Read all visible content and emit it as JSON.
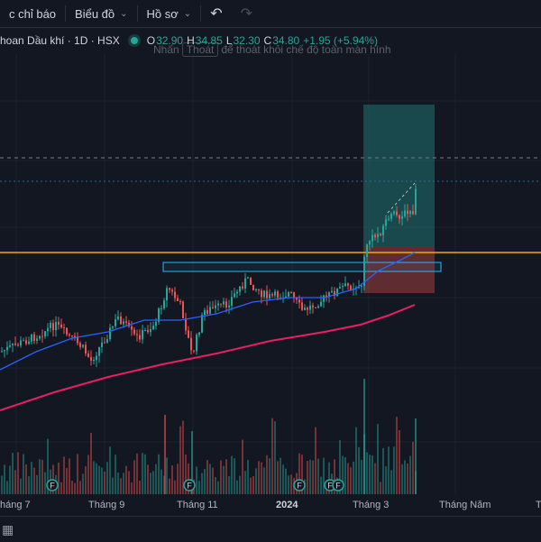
{
  "toolbar": {
    "indicators_label": "c chỉ báo",
    "chart_label": "Biểu đồ",
    "profile_label": "Hồ sơ",
    "undo_icon": "undo-icon",
    "redo_icon": "redo-icon"
  },
  "legend": {
    "symbol": "hoan Dầu khí · 1D · HSX",
    "o_label": "O",
    "o_value": "32.90",
    "h_label": "H",
    "h_value": "34.85",
    "l_label": "L",
    "l_value": "32.30",
    "c_label": "C",
    "c_value": "34.80",
    "change": "+1.95 (+5.94%)"
  },
  "hint": {
    "pre": "Nhấn",
    "key": "Thoát",
    "post": "để thoát khỏi chế độ toàn màn hình"
  },
  "time_axis": [
    "háng 7",
    "Tháng 9",
    "Tháng 11",
    "2024",
    "Tháng 3",
    "Tháng Năm",
    "T"
  ],
  "event_markers": [
    "F",
    "F",
    "F",
    "F",
    "F"
  ],
  "colors": {
    "up": "#26a69a",
    "down": "#ef5350",
    "ma_short": "#2962ff",
    "ma_long": "#e91e63",
    "level": "#f7a600"
  },
  "icons": {
    "calendar": "calendar-icon"
  }
}
